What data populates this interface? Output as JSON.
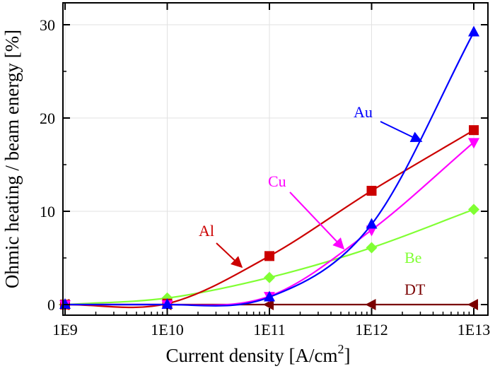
{
  "chart_data": {
    "type": "line",
    "xlabel": "Current density [A/cm",
    "xlabel_sup": "2",
    "xlabel_end": "]",
    "ylabel": "Ohmic heating / beam energy [%]",
    "x_scale": "log",
    "x_ticks": [
      "1E9",
      "1E10",
      "1E11",
      "1E12",
      "1E13"
    ],
    "x": [
      1000000000.0,
      10000000000.0,
      100000000000.0,
      1000000000000.0,
      10000000000000.0
    ],
    "xlim": [
      1000000000.0,
      10000000000000.0
    ],
    "ylim": [
      0,
      32
    ],
    "y_ticks": [
      0,
      10,
      20,
      30
    ],
    "grid": true,
    "legend": "none (labels annotated on curves)",
    "series": [
      {
        "name": "Au",
        "color": "#0000ff",
        "marker": "triangle-up",
        "values": [
          0.0,
          0.0,
          0.8,
          8.6,
          29.2
        ]
      },
      {
        "name": "Al",
        "color": "#cc0000",
        "marker": "square",
        "values": [
          0.0,
          0.1,
          5.2,
          12.2,
          18.7
        ]
      },
      {
        "name": "Cu",
        "color": "#ff00ff",
        "marker": "triangle-down",
        "values": [
          0.0,
          0.0,
          0.9,
          8.0,
          17.4
        ]
      },
      {
        "name": "Be",
        "color": "#80ff33",
        "marker": "diamond",
        "values": [
          0.0,
          0.7,
          2.9,
          6.1,
          10.2
        ]
      },
      {
        "name": "DT",
        "color": "#7a0000",
        "marker": "triangle-left",
        "values": [
          0.0,
          0.0,
          0.0,
          0.0,
          0.0
        ]
      }
    ]
  }
}
